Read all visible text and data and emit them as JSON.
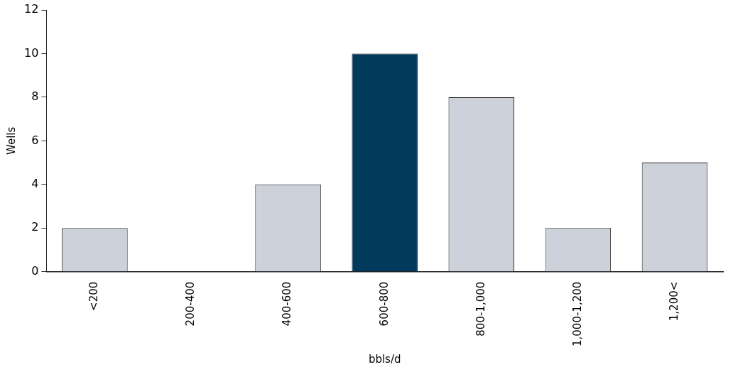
{
  "chart_data": {
    "type": "bar",
    "categories": [
      "<200",
      "200-400",
      "400-600",
      "600-800",
      "800-1,000",
      "1,000-1,200",
      "1,200<"
    ],
    "values": [
      2,
      0,
      4,
      10,
      8,
      2,
      5
    ],
    "colors": [
      "#cdd1d9",
      "#cdd1d9",
      "#cdd1d9",
      "#023a5e",
      "#cdd1d9",
      "#cdd1d9",
      "#cdd1d9"
    ],
    "xlabel": "bbls/d",
    "ylabel": "Wells",
    "ylim": [
      0,
      12
    ],
    "yticks": [
      0,
      2,
      4,
      6,
      8,
      10,
      12
    ],
    "grid": false,
    "legend": false
  }
}
